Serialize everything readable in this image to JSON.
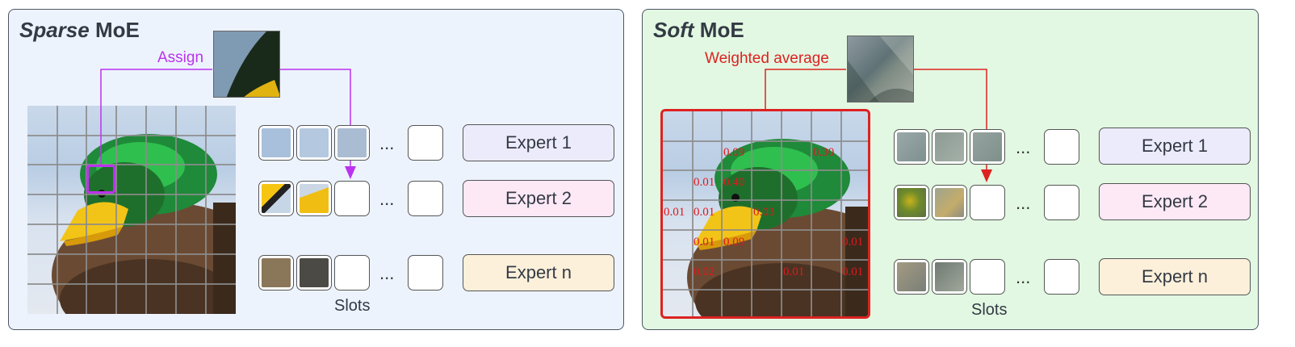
{
  "sparse_panel": {
    "title_emphasis": "Sparse",
    "title_rest": "MoE",
    "arrow_label": "Assign",
    "ellipsis": "...",
    "slots_label": "Slots",
    "experts": [
      {
        "label": "Expert 1",
        "color": "#ecebfb"
      },
      {
        "label": "Expert 2",
        "color": "#fde8f6"
      },
      {
        "label": "Expert n",
        "color": "#fdf0da"
      }
    ],
    "accent": "#bb33ee",
    "background": "#edf3fd"
  },
  "soft_panel": {
    "title_emphasis": "Soft",
    "title_rest": "MoE",
    "arrow_label": "Weighted average",
    "ellipsis": "...",
    "slots_label": "Slots",
    "experts": [
      {
        "label": "Expert 1",
        "color": "#ecebfb"
      },
      {
        "label": "Expert 2",
        "color": "#fde8f6"
      },
      {
        "label": "Expert n",
        "color": "#fdf0da"
      }
    ],
    "weights": [
      "0.09",
      "0.30",
      "0.01",
      "0.40",
      "0.01",
      "0.01",
      "0.03",
      "0.01",
      "0.09",
      "0.01",
      "0.02",
      "0.01",
      "0.01"
    ],
    "accent": "#dd2222",
    "background": "#e2f8e2"
  }
}
